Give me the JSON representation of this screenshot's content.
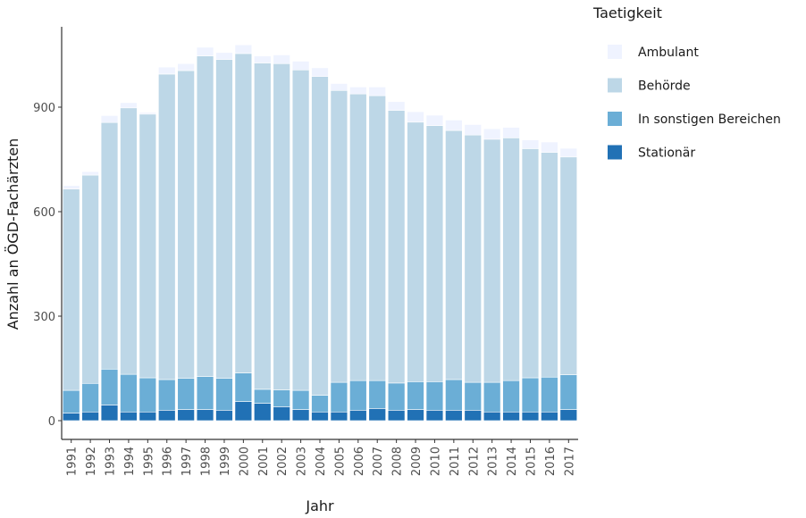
{
  "chart_data": {
    "type": "bar",
    "stacked": true,
    "xlabel": "Jahr",
    "ylabel": "Anzahl an ÖGD-Fachärzten",
    "ylim": [
      0,
      1100
    ],
    "yticks": [
      0,
      300,
      600,
      900
    ],
    "grid": false,
    "legend": {
      "title": "Taetigkeit",
      "position": "right"
    },
    "categories": [
      "1991",
      "1992",
      "1993",
      "1994",
      "1995",
      "1996",
      "1997",
      "1998",
      "1999",
      "2000",
      "2001",
      "2002",
      "2003",
      "2004",
      "2005",
      "2006",
      "2007",
      "2008",
      "2009",
      "2010",
      "2011",
      "2012",
      "2013",
      "2014",
      "2015",
      "2016",
      "2017"
    ],
    "series": [
      {
        "name": "Stationär",
        "color": "#2171b5",
        "values": [
          22,
          25,
          45,
          25,
          25,
          30,
          32,
          32,
          30,
          55,
          50,
          40,
          32,
          25,
          25,
          30,
          35,
          30,
          32,
          30,
          30,
          30,
          25,
          25,
          25,
          25,
          32
        ]
      },
      {
        "name": "In sonstigen Bereichen",
        "color": "#6baed6",
        "values": [
          65,
          82,
          103,
          108,
          98,
          88,
          90,
          95,
          92,
          82,
          40,
          48,
          55,
          48,
          85,
          85,
          80,
          78,
          80,
          82,
          88,
          80,
          85,
          90,
          98,
          100,
          100
        ]
      },
      {
        "name": "Behörde",
        "color": "#bdd7e7",
        "values": [
          578,
          598,
          708,
          765,
          757,
          877,
          883,
          920,
          915,
          917,
          937,
          937,
          920,
          915,
          838,
          823,
          818,
          783,
          745,
          735,
          715,
          710,
          698,
          697,
          658,
          645,
          625
        ]
      },
      {
        "name": "Ambulant",
        "color": "#eff3ff",
        "values": [
          10,
          10,
          20,
          15,
          5,
          20,
          20,
          25,
          20,
          25,
          20,
          25,
          25,
          25,
          20,
          20,
          25,
          25,
          30,
          30,
          30,
          30,
          30,
          30,
          25,
          30,
          25
        ]
      }
    ]
  }
}
